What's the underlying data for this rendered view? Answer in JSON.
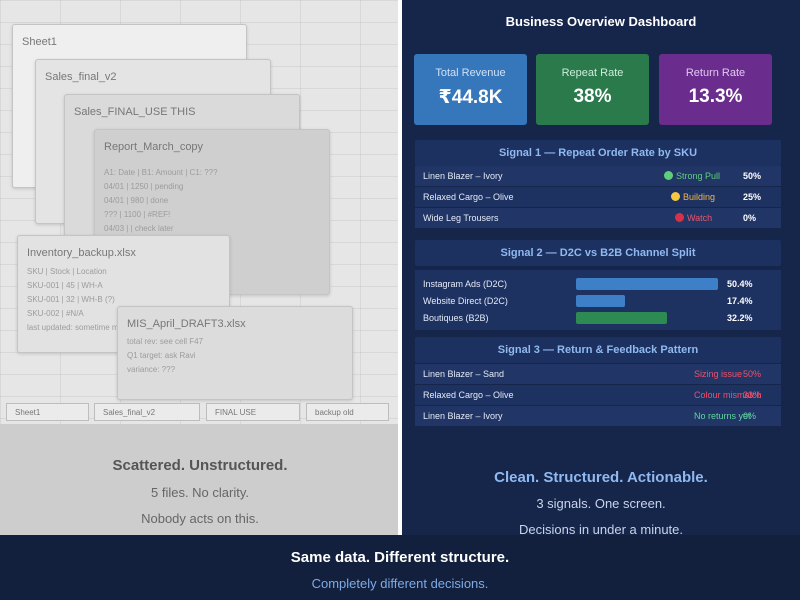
{
  "left": {
    "windows": [
      {
        "title": "Sheet1",
        "lines": []
      },
      {
        "title": "Sales_final_v2",
        "lines": []
      },
      {
        "title": "Sales_FINAL_USE THIS",
        "lines": []
      },
      {
        "title": "Report_March_copy",
        "lines": [
          "A1: Date | B1: Amount | C1: ???",
          "04/01 | 1250 | pending",
          "04/01 | 980 | done",
          "??? | 1100 | #REF!",
          "04/03 | | check later"
        ]
      },
      {
        "title": "Inventory_backup.xlsx",
        "lines": [
          "SKU | Stock | Location",
          "SKU-001 | 45 | WH-A",
          "SKU-001 | 32 | WH-B (?)",
          "SKU-002 | #N/A",
          "last updated: sometime m"
        ]
      },
      {
        "title": "MIS_April_DRAFT3.xlsx",
        "lines": [
          "total rev: see cell F47",
          "Q1 target: ask Ravi",
          "variance: ???"
        ]
      }
    ],
    "sheet_tabs": [
      "Sheet1",
      "Sales_final_v2",
      "FINAL USE",
      "backup old"
    ],
    "headline": "Scattered. Unstructured.",
    "line1": "5 files. No clarity.",
    "line2": "Nobody acts on this."
  },
  "right": {
    "title": "Business Overview Dashboard",
    "kpis": [
      {
        "label": "Total Revenue",
        "value": "₹44.8K"
      },
      {
        "label": "Repeat Rate",
        "value": "38%"
      },
      {
        "label": "Return Rate",
        "value": "13.3%"
      }
    ],
    "signal1": {
      "title": "Signal 1 — Repeat Order Rate by SKU",
      "rows": [
        {
          "name": "Linen Blazer – Ivory",
          "status": "Strong Pull",
          "status_color": "#5fce7a",
          "dot_color": "#5fce7a",
          "pct": "50%"
        },
        {
          "name": "Relaxed Cargo – Olive",
          "status": "Building",
          "status_color": "#f2b54a",
          "dot_color": "#f5c842",
          "pct": "25%"
        },
        {
          "name": "Wide Leg Trousers",
          "status": "Watch",
          "status_color": "#e8556c",
          "dot_color": "#d9304a",
          "pct": "0%"
        }
      ]
    },
    "signal2": {
      "title": "Signal 2 — D2C vs B2B Channel Split",
      "rows": [
        {
          "name": "Instagram Ads (D2C)",
          "share": 50.4,
          "pct": "50.4%",
          "color": "#3d80c8"
        },
        {
          "name": "Website Direct (D2C)",
          "share": 17.4,
          "pct": "17.4%",
          "color": "#3d80c8"
        },
        {
          "name": "Boutiques (B2B)",
          "share": 32.2,
          "pct": "32.2%",
          "color": "#2d8a52"
        }
      ]
    },
    "signal3": {
      "title": "Signal 3 — Return & Feedback Pattern",
      "rows": [
        {
          "name": "Linen Blazer – Sand",
          "label": "Sizing issue",
          "pct": "50%",
          "color": "#f0506a"
        },
        {
          "name": "Relaxed Cargo – Olive",
          "label": "Colour mismatch",
          "pct": "33%",
          "color": "#f0506a"
        },
        {
          "name": "Linen Blazer – Ivory",
          "label": "No returns yet",
          "pct": "0%",
          "color": "#5fd6a0"
        }
      ]
    },
    "headline": "Clean. Structured. Actionable.",
    "line1": "3 signals. One screen.",
    "line2": "Decisions in under a minute."
  },
  "caption": {
    "line1": "Same data. Different structure.",
    "line2": "Completely different decisions."
  }
}
